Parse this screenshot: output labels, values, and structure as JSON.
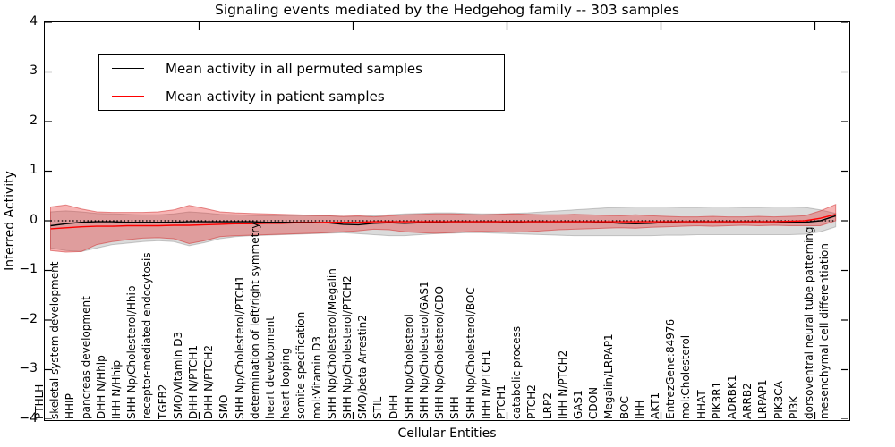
{
  "figure": {
    "title": "Signaling events mediated by the Hedgehog family -- 303 samples",
    "xlabel": "Cellular Entities",
    "ylabel": "Inferred Activity"
  },
  "legend": {
    "items": [
      {
        "label": "Mean activity in all permuted samples",
        "color": "#000000"
      },
      {
        "label": "Mean activity in patient samples",
        "color": "#ff0000"
      }
    ]
  },
  "axis": {
    "yticks": [
      "4",
      "3",
      "2",
      "1",
      "0",
      "−1",
      "−2",
      "−3",
      "−4"
    ],
    "ylim": [
      -4,
      4
    ]
  },
  "chart_data": {
    "type": "line",
    "title": "Signaling events mediated by the Hedgehog family -- 303 samples",
    "xlabel": "Cellular Entities",
    "ylabel": "Inferred Activity",
    "ylim": [
      -4,
      4
    ],
    "grid": false,
    "legend_position": "upper left",
    "zero_reference_line": 0,
    "categories": [
      "PTHLH",
      "skeletal system development",
      "HHIP",
      "pancreas development",
      "DHH N/Hhip",
      "IHH N/Hhip",
      "SHH Np/Cholesterol/Hhip",
      "receptor-mediated endocytosis",
      "TGFB2",
      "SMO/Vitamin D3",
      "DHH N/PTCH1",
      "DHH N/PTCH2",
      "SMO",
      "SHH Np/Cholesterol/PTCH1",
      "determination of left/right symmetry",
      "heart development",
      "heart looping",
      "somite specification",
      "mol:Vitamin D3",
      "SHH Np/Cholesterol/Megalin",
      "SHH Np/Cholesterol/PTCH2",
      "SMO/beta Arrestin2",
      "STIL",
      "DHH",
      "SHH Np/Cholesterol",
      "SHH Np/Cholesterol/GAS1",
      "SHH Np/Cholesterol/CDO",
      "SHH",
      "SHH Np/Cholesterol/BOC",
      "IHH N/PTCH1",
      "PTCH1",
      "catabolic process",
      "PTCH2",
      "LRP2",
      "IHH N/PTCH2",
      "GAS1",
      "CDON",
      "Megalin/LRPAP1",
      "BOC",
      "IHH",
      "AKT1",
      "EntrezGene:84976",
      "mol:Cholesterol",
      "HHAT",
      "PIK3R1",
      "ADRBK1",
      "ARRB2",
      "LRPAP1",
      "PIK3CA",
      "PI3K",
      "dorsoventral neural tube patterning",
      "mesenchymal cell differentiation"
    ],
    "series": [
      {
        "name": "Mean activity in all permuted samples",
        "color": "#000000",
        "values": [
          -0.1,
          -0.06,
          -0.03,
          -0.02,
          -0.02,
          -0.03,
          -0.03,
          -0.03,
          -0.03,
          -0.02,
          -0.02,
          -0.02,
          -0.02,
          -0.02,
          -0.03,
          -0.03,
          -0.03,
          -0.03,
          -0.04,
          -0.07,
          -0.08,
          -0.05,
          -0.04,
          -0.05,
          -0.04,
          -0.03,
          -0.02,
          -0.02,
          -0.02,
          -0.02,
          -0.03,
          -0.02,
          -0.02,
          -0.02,
          -0.02,
          -0.02,
          -0.03,
          -0.05,
          -0.06,
          -0.05,
          -0.03,
          -0.02,
          -0.02,
          -0.02,
          -0.02,
          -0.02,
          -0.02,
          -0.02,
          -0.03,
          -0.03,
          0.0,
          0.1
        ]
      },
      {
        "name": "Mean activity in patient samples",
        "color": "#ff0000",
        "values": [
          -0.16,
          -0.14,
          -0.12,
          -0.11,
          -0.11,
          -0.1,
          -0.1,
          -0.1,
          -0.09,
          -0.09,
          -0.08,
          -0.07,
          -0.06,
          -0.06,
          -0.05,
          -0.05,
          -0.04,
          -0.04,
          -0.03,
          -0.03,
          -0.03,
          -0.02,
          -0.02,
          -0.02,
          -0.02,
          -0.02,
          -0.02,
          -0.02,
          -0.02,
          -0.02,
          -0.02,
          -0.02,
          -0.02,
          -0.02,
          -0.02,
          -0.02,
          -0.02,
          -0.02,
          -0.02,
          -0.02,
          -0.02,
          -0.02,
          -0.02,
          -0.02,
          -0.02,
          -0.02,
          -0.02,
          -0.02,
          -0.01,
          0.0,
          0.05,
          0.13
        ]
      }
    ],
    "bands": [
      {
        "name": "permuted samples range",
        "fill": "rgba(110,110,110,0.25)",
        "edge": "rgba(110,110,110,0.35)",
        "top": [
          0.18,
          0.2,
          0.18,
          0.15,
          0.14,
          0.13,
          0.12,
          0.12,
          0.14,
          0.18,
          0.16,
          0.13,
          0.12,
          0.11,
          0.1,
          0.1,
          0.1,
          0.1,
          0.1,
          0.09,
          0.09,
          0.1,
          0.12,
          0.14,
          0.15,
          0.16,
          0.16,
          0.15,
          0.14,
          0.14,
          0.15,
          0.16,
          0.18,
          0.2,
          0.22,
          0.24,
          0.26,
          0.27,
          0.28,
          0.28,
          0.28,
          0.27,
          0.27,
          0.28,
          0.28,
          0.27,
          0.27,
          0.28,
          0.28,
          0.27,
          0.22,
          0.15
        ],
        "bottom": [
          -0.55,
          -0.6,
          -0.62,
          -0.55,
          -0.48,
          -0.45,
          -0.42,
          -0.4,
          -0.42,
          -0.5,
          -0.44,
          -0.36,
          -0.32,
          -0.3,
          -0.29,
          -0.28,
          -0.27,
          -0.26,
          -0.25,
          -0.24,
          -0.26,
          -0.28,
          -0.3,
          -0.3,
          -0.28,
          -0.26,
          -0.25,
          -0.24,
          -0.24,
          -0.25,
          -0.26,
          -0.27,
          -0.28,
          -0.29,
          -0.3,
          -0.3,
          -0.3,
          -0.3,
          -0.3,
          -0.3,
          -0.29,
          -0.29,
          -0.28,
          -0.28,
          -0.28,
          -0.28,
          -0.28,
          -0.28,
          -0.28,
          -0.27,
          -0.22,
          -0.12
        ]
      },
      {
        "name": "patient samples range",
        "fill": "rgba(230,30,30,0.33)",
        "edge": "rgba(210,50,50,0.55)",
        "top": [
          0.28,
          0.32,
          0.24,
          0.18,
          0.17,
          0.17,
          0.17,
          0.18,
          0.22,
          0.31,
          0.25,
          0.18,
          0.16,
          0.15,
          0.14,
          0.13,
          0.12,
          0.11,
          0.1,
          0.09,
          0.1,
          0.08,
          0.1,
          0.12,
          0.13,
          0.14,
          0.14,
          0.13,
          0.12,
          0.13,
          0.14,
          0.13,
          0.12,
          0.12,
          0.13,
          0.12,
          0.11,
          0.1,
          0.12,
          0.1,
          0.09,
          0.08,
          0.08,
          0.09,
          0.08,
          0.08,
          0.09,
          0.08,
          0.09,
          0.1,
          0.2,
          0.33
        ],
        "bottom": [
          -0.6,
          -0.63,
          -0.62,
          -0.48,
          -0.42,
          -0.38,
          -0.35,
          -0.34,
          -0.36,
          -0.46,
          -0.4,
          -0.32,
          -0.3,
          -0.29,
          -0.28,
          -0.27,
          -0.26,
          -0.25,
          -0.24,
          -0.22,
          -0.2,
          -0.17,
          -0.18,
          -0.22,
          -0.24,
          -0.25,
          -0.24,
          -0.22,
          -0.21,
          -0.22,
          -0.23,
          -0.22,
          -0.2,
          -0.18,
          -0.17,
          -0.16,
          -0.15,
          -0.14,
          -0.15,
          -0.13,
          -0.12,
          -0.11,
          -0.1,
          -0.11,
          -0.1,
          -0.09,
          -0.1,
          -0.09,
          -0.1,
          -0.1,
          -0.1,
          0.0
        ]
      }
    ]
  }
}
